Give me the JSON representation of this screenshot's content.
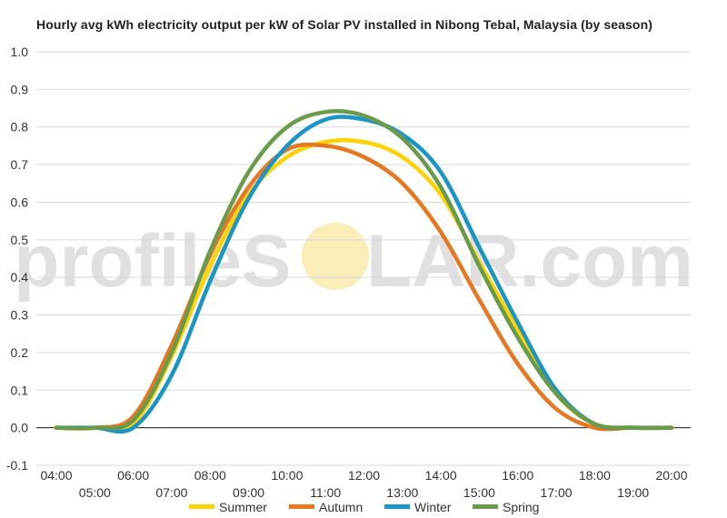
{
  "chart_data": {
    "type": "line",
    "title": "Hourly avg kWh electricity output per kW of Solar PV installed in Nibong Tebal, Malaysia (by season)",
    "xlabel": "",
    "ylabel": "",
    "ylim": [
      -0.1,
      1.0
    ],
    "yticks": [
      "1.0",
      "0.9",
      "0.8",
      "0.7",
      "0.6",
      "0.5",
      "0.4",
      "0.3",
      "0.2",
      "0.1",
      "0.0",
      "-0.1"
    ],
    "x": [
      "04:00",
      "05:00",
      "06:00",
      "07:00",
      "08:00",
      "09:00",
      "10:00",
      "11:00",
      "12:00",
      "13:00",
      "14:00",
      "15:00",
      "16:00",
      "17:00",
      "18:00",
      "19:00",
      "20:00"
    ],
    "grid": true,
    "legend": "bottom",
    "series": [
      {
        "name": "Summer",
        "color": "#ffd200",
        "values": [
          0.0,
          0.0,
          0.01,
          0.19,
          0.43,
          0.62,
          0.72,
          0.76,
          0.76,
          0.72,
          0.62,
          0.44,
          0.26,
          0.09,
          0.01,
          0.0,
          0.0
        ]
      },
      {
        "name": "Autumn",
        "color": "#e87722",
        "values": [
          0.0,
          0.0,
          0.03,
          0.22,
          0.46,
          0.64,
          0.74,
          0.75,
          0.72,
          0.65,
          0.52,
          0.34,
          0.17,
          0.05,
          0.0,
          0.0,
          0.0
        ]
      },
      {
        "name": "Winter",
        "color": "#1a96c6",
        "values": [
          0.0,
          0.0,
          0.0,
          0.14,
          0.39,
          0.61,
          0.75,
          0.82,
          0.82,
          0.78,
          0.68,
          0.48,
          0.28,
          0.1,
          0.01,
          0.0,
          0.0
        ]
      },
      {
        "name": "Spring",
        "color": "#6a9a4b",
        "values": [
          0.0,
          0.0,
          0.02,
          0.2,
          0.47,
          0.68,
          0.8,
          0.84,
          0.83,
          0.77,
          0.64,
          0.43,
          0.24,
          0.09,
          0.01,
          0.0,
          0.0
        ]
      }
    ]
  },
  "watermark": {
    "left": "profileS",
    "right": "LAR.com"
  }
}
